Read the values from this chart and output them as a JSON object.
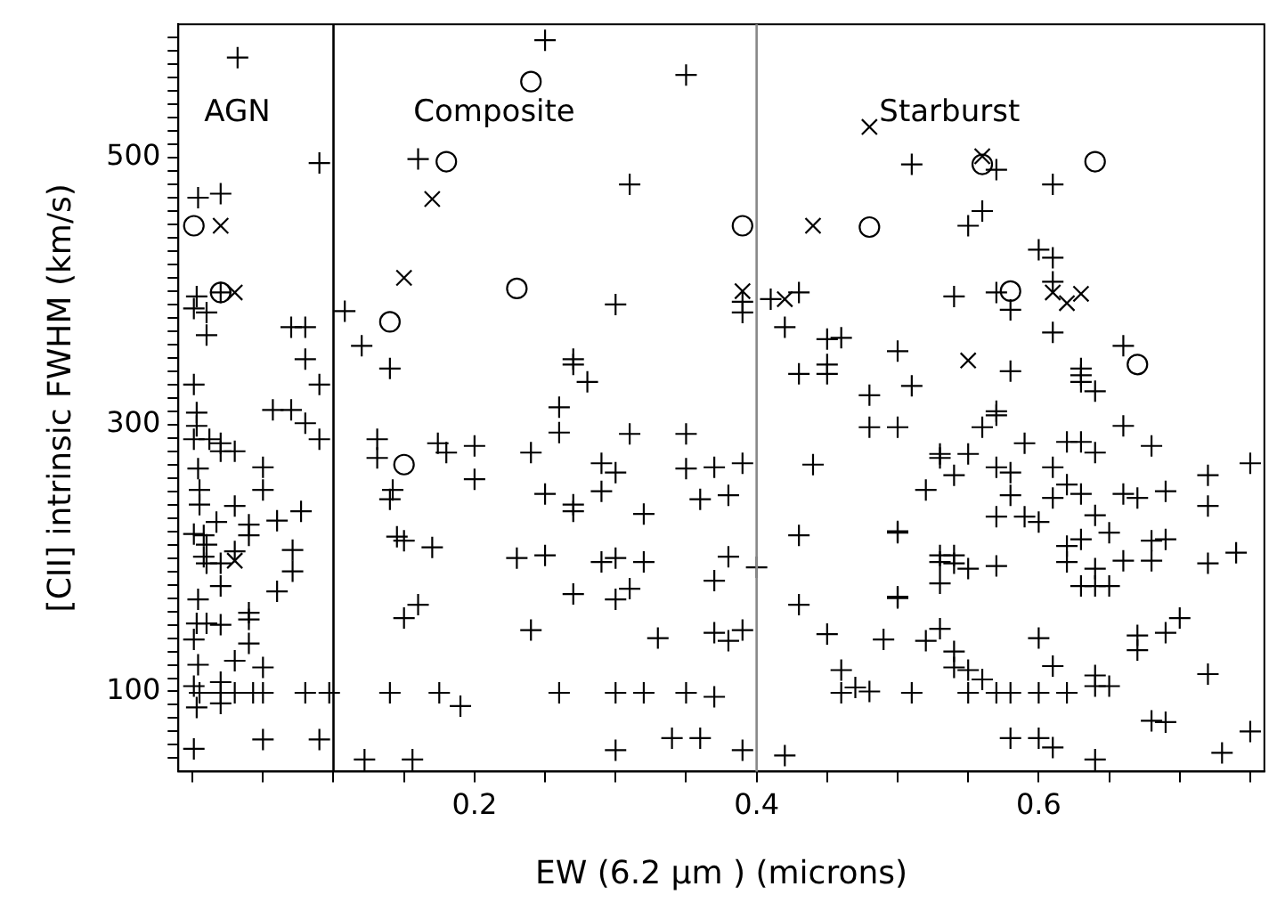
{
  "chart_data": {
    "type": "scatter",
    "xlabel": "EW (6.2 µm ) (microns)",
    "ylabel": "[CII] intrinsic FWHM (km/s)",
    "xlim": [
      -0.01,
      0.76
    ],
    "xticks": [
      {
        "value": 0,
        "label": null
      },
      {
        "value": 0.05,
        "label": null
      },
      {
        "value": 0.1,
        "label": null
      },
      {
        "value": 0.15,
        "label": null
      },
      0.2,
      {
        "value": 0.25,
        "label": null
      },
      {
        "value": 0.3,
        "label": null
      },
      {
        "value": 0.35,
        "label": null
      },
      0.4,
      {
        "value": 0.45,
        "label": null
      },
      {
        "value": 0.5,
        "label": null
      },
      {
        "value": 0.55,
        "label": null
      },
      0.6,
      {
        "value": 0.65,
        "label": null
      },
      {
        "value": 0.7,
        "label": null
      },
      {
        "value": 0.75,
        "label": null
      }
    ],
    "ylim": [
      40,
      600
    ],
    "yticks": [
      {
        "value": 50,
        "label": null
      },
      {
        "value": 60,
        "label": null
      },
      {
        "value": 70,
        "label": null
      },
      {
        "value": 80,
        "label": null
      },
      {
        "value": 90,
        "label": null
      },
      100,
      {
        "value": 110,
        "label": null
      },
      {
        "value": 120,
        "label": null
      },
      {
        "value": 130,
        "label": null
      },
      {
        "value": 140,
        "label": null
      },
      {
        "value": 150,
        "label": null
      },
      {
        "value": 160,
        "label": null
      },
      {
        "value": 170,
        "label": null
      },
      {
        "value": 180,
        "label": null
      },
      {
        "value": 190,
        "label": null
      },
      {
        "value": 200,
        "label": null
      },
      {
        "value": 210,
        "label": null
      },
      {
        "value": 220,
        "label": null
      },
      {
        "value": 230,
        "label": null
      },
      {
        "value": 240,
        "label": null
      },
      {
        "value": 250,
        "label": null
      },
      {
        "value": 260,
        "label": null
      },
      {
        "value": 270,
        "label": null
      },
      {
        "value": 280,
        "label": null
      },
      {
        "value": 290,
        "label": null
      },
      300,
      {
        "value": 310,
        "label": null
      },
      {
        "value": 320,
        "label": null
      },
      {
        "value": 330,
        "label": null
      },
      {
        "value": 340,
        "label": null
      },
      {
        "value": 350,
        "label": null
      },
      {
        "value": 360,
        "label": null
      },
      {
        "value": 370,
        "label": null
      },
      {
        "value": 380,
        "label": null
      },
      {
        "value": 390,
        "label": null
      },
      {
        "value": 400,
        "label": null
      },
      {
        "value": 410,
        "label": null
      },
      {
        "value": 420,
        "label": null
      },
      {
        "value": 430,
        "label": null
      },
      {
        "value": 440,
        "label": null
      },
      {
        "value": 450,
        "label": null
      },
      {
        "value": 460,
        "label": null
      },
      {
        "value": 470,
        "label": null
      },
      {
        "value": 480,
        "label": null
      },
      {
        "value": 490,
        "label": null
      },
      500,
      {
        "value": 510,
        "label": null
      },
      {
        "value": 520,
        "label": null
      },
      {
        "value": 530,
        "label": null
      },
      {
        "value": 540,
        "label": null
      },
      {
        "value": 550,
        "label": null
      },
      {
        "value": 560,
        "label": null
      },
      {
        "value": 570,
        "label": null
      },
      {
        "value": 580,
        "label": null
      },
      {
        "value": 590,
        "label": null
      }
    ],
    "grid": false,
    "legend": false,
    "ref_lines": [
      {
        "axis": "x",
        "value": 0.1,
        "color": "#000000"
      },
      {
        "axis": "x",
        "value": 0.4,
        "color": "#888888"
      }
    ],
    "annotations": [
      "AGN",
      "Composite",
      "Starburst"
    ],
    "series": [
      {
        "color": "#000000",
        "marker": "plus",
        "x": [
          0.032,
          0.09,
          0.16,
          0.02,
          0.004,
          0.02,
          0.003,
          0.001,
          0.01,
          0.01,
          0.07,
          0.08,
          0.08,
          0.09,
          0.001,
          0.057,
          0.07,
          0.108,
          0.12,
          0.14,
          0.25,
          0.35,
          0.31,
          0.39,
          0.39,
          0.3,
          0.41,
          0.43,
          0.42,
          0.45,
          0.46,
          0.5,
          0.43,
          0.45,
          0.45,
          0.48,
          0.27,
          0.27,
          0.28,
          0.26,
          0.51,
          0.57,
          0.61,
          0.56,
          0.55,
          0.6,
          0.61,
          0.61,
          0.54,
          0.57,
          0.58,
          0.61,
          0.58,
          0.66,
          0.63,
          0.63,
          0.63,
          0.64,
          0.51,
          0.57,
          0.003,
          0.003,
          0.08,
          0.09,
          0.001,
          0.012,
          0.02,
          0.02,
          0.03,
          0.004,
          0.05,
          0.005,
          0.005,
          0.05,
          0.03,
          0.077,
          0.017,
          0.04,
          0.04,
          0.06,
          0.001,
          0.008,
          0.01,
          0.03,
          0.071,
          0.008,
          0.01,
          0.02,
          0.071,
          0.02,
          0.06,
          0.004,
          0.04,
          0.04,
          0.003,
          0.01,
          0.02,
          0.001,
          0.04,
          0.004,
          0.03,
          0.05,
          0.001,
          0.02,
          0.005,
          0.02,
          0.03,
          0.043,
          0.05,
          0.08,
          0.097,
          0.02,
          0.003,
          0.05,
          0.09,
          0.001,
          0.131,
          0.131,
          0.174,
          0.18,
          0.2,
          0.24,
          0.2,
          0.142,
          0.14,
          0.145,
          0.15,
          0.17,
          0.23,
          0.16,
          0.15,
          0.24,
          0.14,
          0.175,
          0.19,
          0.122,
          0.156,
          0.26,
          0.31,
          0.35,
          0.29,
          0.3,
          0.35,
          0.37,
          0.39,
          0.25,
          0.27,
          0.27,
          0.29,
          0.32,
          0.36,
          0.38,
          0.25,
          0.29,
          0.3,
          0.32,
          0.38,
          0.37,
          0.27,
          0.3,
          0.31,
          0.33,
          0.37,
          0.38,
          0.39,
          0.26,
          0.3,
          0.32,
          0.35,
          0.37,
          0.34,
          0.36,
          0.3,
          0.39,
          0.48,
          0.5,
          0.44,
          0.43,
          0.5,
          0.4,
          0.43,
          0.5,
          0.45,
          0.49,
          0.46,
          0.46,
          0.47,
          0.48,
          0.42,
          0.56,
          0.57,
          0.66,
          0.53,
          0.53,
          0.55,
          0.59,
          0.62,
          0.63,
          0.64,
          0.68,
          0.75,
          0.54,
          0.57,
          0.58,
          0.61,
          0.72,
          0.52,
          0.58,
          0.61,
          0.62,
          0.63,
          0.66,
          0.67,
          0.69,
          0.72,
          0.57,
          0.59,
          0.6,
          0.64,
          0.5,
          0.65,
          0.63,
          0.62,
          0.68,
          0.69,
          0.53,
          0.54,
          0.53,
          0.54,
          0.55,
          0.57,
          0.62,
          0.66,
          0.68,
          0.72,
          0.74,
          0.64,
          0.63,
          0.64,
          0.65,
          0.53,
          0.5,
          0.7,
          0.53,
          0.52,
          0.6,
          0.67,
          0.67,
          0.69,
          0.54,
          0.54,
          0.55,
          0.56,
          0.61,
          0.64,
          0.64,
          0.65,
          0.72,
          0.51,
          0.55,
          0.57,
          0.58,
          0.6,
          0.62,
          0.68,
          0.69,
          0.75,
          0.58,
          0.6,
          0.61,
          0.73,
          0.64
        ],
        "values": [
          575,
          496,
          499,
          473,
          470,
          399,
          396,
          387,
          384,
          367,
          373,
          373,
          349,
          330,
          330,
          311,
          311,
          385,
          359,
          342,
          588,
          562,
          480,
          392,
          384,
          390,
          394,
          399,
          373,
          364,
          365,
          355,
          338,
          345,
          338,
          322,
          349,
          345,
          332,
          313,
          495,
          491,
          480,
          460,
          449,
          431,
          425,
          407,
          396,
          399,
          386,
          369,
          340,
          359,
          342,
          337,
          332,
          325,
          329,
          310,
          309,
          299,
          301,
          289,
          289,
          289,
          286,
          280,
          280,
          267,
          268,
          251,
          240,
          251,
          239,
          235,
          227,
          225,
          217,
          228,
          218,
          217,
          210,
          205,
          206,
          201,
          196,
          196,
          190,
          179,
          175,
          169,
          159,
          154,
          151,
          151,
          150,
          139,
          136,
          120,
          123,
          118,
          104,
          107,
          99,
          99,
          99,
          99,
          99,
          99,
          99,
          91,
          88,
          64,
          64,
          57,
          289,
          275,
          286,
          279,
          284,
          279,
          259,
          251,
          244,
          216,
          213,
          208,
          200,
          165,
          155,
          146,
          99,
          99,
          89,
          49,
          49,
          294,
          293,
          293,
          271,
          264,
          267,
          268,
          271,
          248,
          240,
          235,
          250,
          233,
          244,
          247,
          202,
          197,
          200,
          197,
          201,
          183,
          173,
          169,
          177,
          140,
          144,
          138,
          146,
          99,
          99,
          99,
          99,
          96,
          65,
          65,
          56,
          56,
          298,
          298,
          270,
          217,
          220,
          193,
          165,
          171,
          143,
          139,
          116,
          99,
          103,
          100,
          52,
          298,
          307,
          299,
          278,
          275,
          278,
          286,
          287,
          287,
          279,
          284,
          271,
          262,
          268,
          264,
          268,
          262,
          251,
          247,
          245,
          255,
          248,
          248,
          245,
          250,
          239,
          231,
          231,
          227,
          232,
          219,
          219,
          214,
          209,
          213,
          214,
          202,
          202,
          197,
          196,
          192,
          194,
          197,
          198,
          198,
          196,
          204,
          192,
          179,
          179,
          179,
          181,
          170,
          155,
          147,
          138,
          140,
          142,
          131,
          144,
          130,
          118,
          116,
          109,
          119,
          112,
          104,
          104,
          113,
          99,
          99,
          99,
          99,
          99,
          99,
          78,
          77,
          70,
          65,
          65,
          58,
          54,
          49
        ]
      },
      {
        "color": "#000000",
        "marker": "circle",
        "x": [
          0.18,
          0.001,
          0.23,
          0.02,
          0.14,
          0.24,
          0.39,
          0.48,
          0.56,
          0.64,
          0.58,
          0.67,
          0.15
        ],
        "values": [
          497,
          449,
          402,
          399,
          377,
          557,
          449,
          448,
          495,
          497,
          400,
          345,
          270
        ]
      },
      {
        "color": "#000000",
        "marker": "cross",
        "x": [
          0.02,
          0.17,
          0.15,
          0.03,
          0.39,
          0.42,
          0.48,
          0.44,
          0.56,
          0.61,
          0.62,
          0.63,
          0.55,
          0.03
        ],
        "values": [
          449,
          469,
          410,
          399,
          400,
          394,
          523,
          449,
          501,
          399,
          391,
          398,
          348,
          198
        ]
      }
    ]
  }
}
